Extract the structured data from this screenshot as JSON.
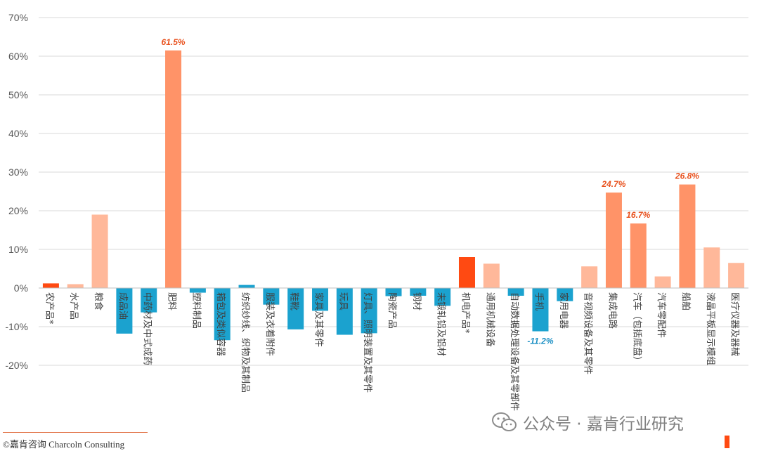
{
  "chart_data": {
    "type": "bar",
    "ylim": [
      -20,
      70
    ],
    "yticks": [
      -20,
      -10,
      0,
      10,
      20,
      30,
      40,
      50,
      60,
      70
    ],
    "ytick_labels": [
      "-20%",
      "-10%",
      "0%",
      "10%",
      "20%",
      "30%",
      "40%",
      "50%",
      "60%",
      "70%"
    ],
    "grid": true,
    "categories": [
      "农产品*",
      "水产品",
      "粮食",
      "成品油",
      "中药材及中式成药",
      "肥料",
      "塑料制品",
      "箱包及类似容器",
      "纺织纱线、织物及其制品",
      "服装及衣着附件",
      "鞋靴",
      "家具及其零件",
      "玩具",
      "灯具、照明装置及其零件",
      "陶瓷产品",
      "钢材",
      "未锻轧铝及铝材",
      "机电产品*",
      "通用机械设备",
      "自动数据处理设备及其零部件",
      "手机",
      "家用电器",
      "音视频设备及其零件",
      "集成电路",
      "汽车（包括底盘）",
      "汽车零配件",
      "船舶",
      "液晶平板显示模组",
      "医疗仪器及器械"
    ],
    "values": [
      1.2,
      1.0,
      19.0,
      -11.8,
      -6.3,
      61.5,
      -1.2,
      -13.5,
      0.8,
      -4.3,
      -10.7,
      -5.9,
      -12.1,
      -11.7,
      -2.1,
      -2.0,
      -4.6,
      8.0,
      6.3,
      -2.0,
      -11.2,
      -3.4,
      5.6,
      24.7,
      16.7,
      3.0,
      26.8,
      10.5,
      6.5
    ],
    "bar_colors": [
      "#ff4a12",
      "#ffb89a",
      "#ffb89a",
      "#1ba2cf",
      "#1ba2cf",
      "#ff9368",
      "#1ba2cf",
      "#1ba2cf",
      "#1ba2cf",
      "#1ba2cf",
      "#1ba2cf",
      "#1ba2cf",
      "#1ba2cf",
      "#1ba2cf",
      "#1ba2cf",
      "#1ba2cf",
      "#1ba2cf",
      "#ff4a12",
      "#ffb89a",
      "#1ba2cf",
      "#1ba2cf",
      "#1ba2cf",
      "#ffb89a",
      "#ff9368",
      "#ff9368",
      "#ffb89a",
      "#ff9368",
      "#ffb89a",
      "#ffb89a"
    ],
    "data_labels": [
      {
        "category": "肥料",
        "text": "61.5%",
        "color": "#e8501c"
      },
      {
        "category": "手机",
        "text": "-11.2%",
        "color": "#1a8fc4"
      },
      {
        "category": "集成电路",
        "text": "24.7%",
        "color": "#e8501c"
      },
      {
        "category": "汽车（包括底盘）",
        "text": "16.7%",
        "color": "#e8501c"
      },
      {
        "category": "船舶",
        "text": "26.8%",
        "color": "#e8501c"
      }
    ]
  },
  "footer": {
    "text": "©嘉肯咨询  Charcoln Consulting"
  },
  "watermark": {
    "text": "公众号 · 嘉肯行业研究",
    "icon": "wechat-icon"
  }
}
